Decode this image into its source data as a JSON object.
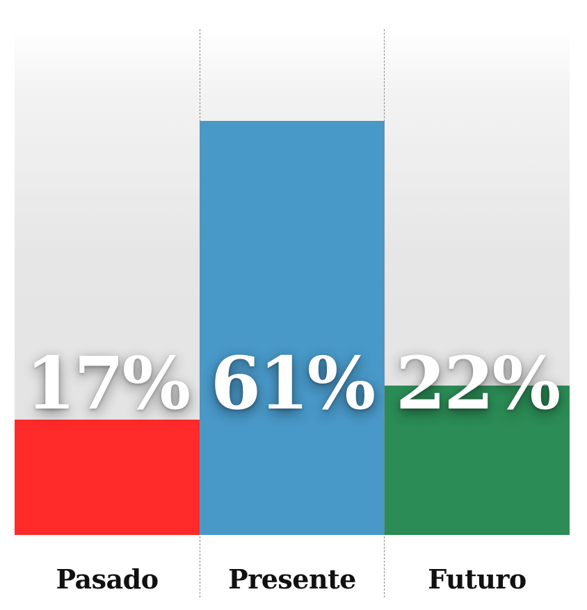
{
  "chart_data": {
    "type": "bar",
    "categories": [
      "Pasado",
      "Presente",
      "Futuro"
    ],
    "values": [
      17,
      61,
      22
    ],
    "value_labels": [
      "17%",
      "61%",
      "22%"
    ],
    "colors": [
      "#ff2a2a",
      "#4898c8",
      "#2b8c55"
    ],
    "title": "",
    "xlabel": "",
    "ylabel": "",
    "grid": false,
    "legend": "none"
  }
}
